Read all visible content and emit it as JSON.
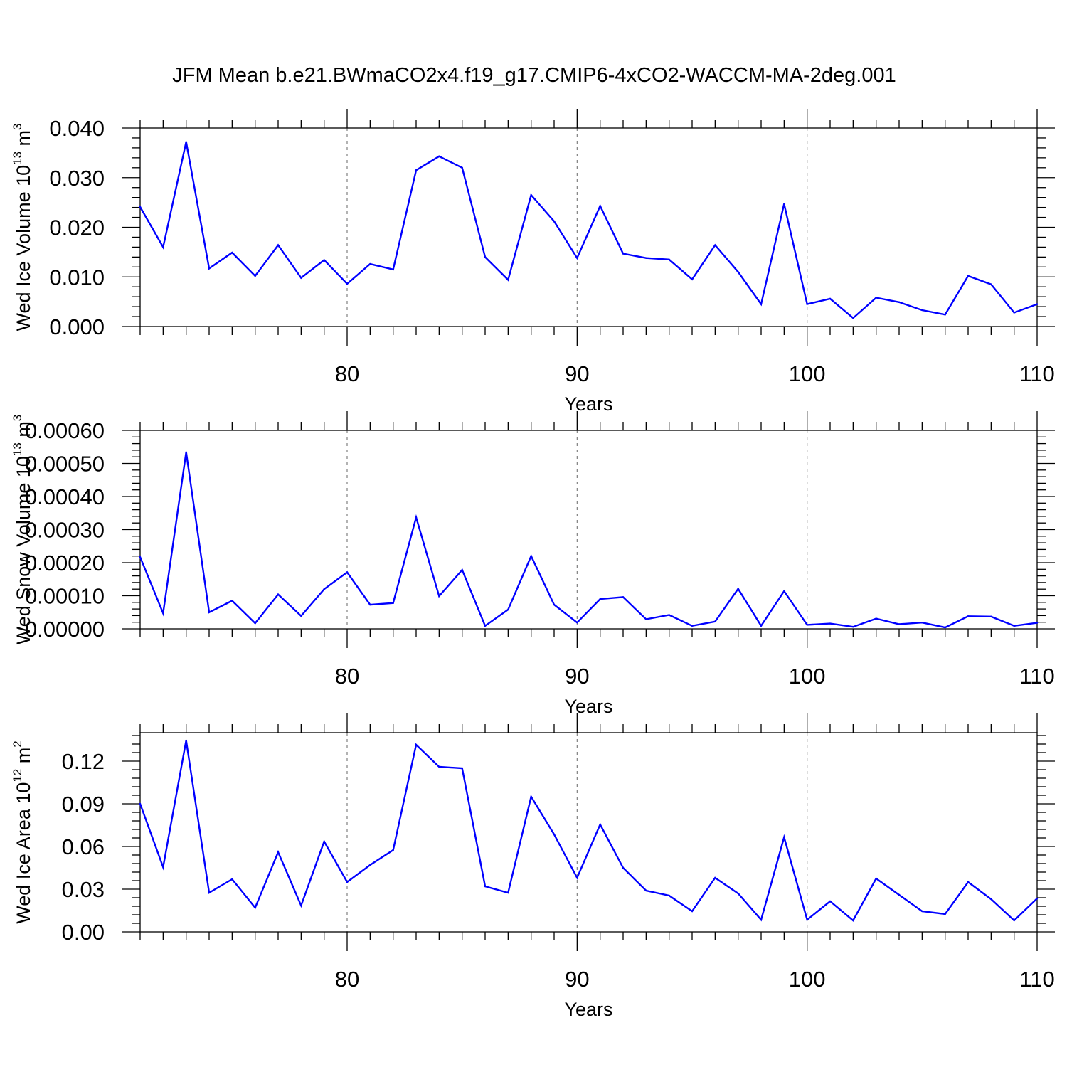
{
  "figure_title": "JFM Mean b.e21.BWmaCO2x4.f19_g17.CMIP6-4xCO2-WACCM-MA-2deg.001",
  "colors": {
    "line": "#0000ff",
    "axis": "#000000",
    "grid": "#808080"
  },
  "chart_data": [
    {
      "type": "line",
      "title": "JFM Mean b.e21.BWmaCO2x4.f19_g17.CMIP6-4xCO2-WACCM-MA-2deg.001",
      "xlabel": "Years",
      "ylabel": {
        "text": "Wed Ice Volume 10",
        "sup": "13",
        "unit": " m",
        "unit_sup": "3"
      },
      "xlim": [
        71,
        110
      ],
      "ylim": [
        0,
        0.04
      ],
      "x_ticks": [
        80,
        90,
        100,
        110
      ],
      "x_tick_labels": [
        "80",
        "90",
        "100",
        "110"
      ],
      "y_ticks": [
        0,
        0.01,
        0.02,
        0.03,
        0.04
      ],
      "y_tick_labels": [
        "0.000",
        "0.010",
        "0.020",
        "0.030",
        "0.040"
      ],
      "grid": "vertical dashed at major x ticks",
      "x": [
        71,
        72,
        73,
        74,
        75,
        76,
        77,
        78,
        79,
        80,
        81,
        82,
        83,
        84,
        85,
        86,
        87,
        88,
        89,
        90,
        91,
        92,
        93,
        94,
        95,
        96,
        97,
        98,
        99,
        100,
        101,
        102,
        103,
        104,
        105,
        106,
        107,
        108,
        109,
        110
      ],
      "series": [
        {
          "name": "Wed Ice Volume",
          "values": [
            0.0241,
            0.016,
            0.0372,
            0.0117,
            0.0149,
            0.0102,
            0.0164,
            0.0098,
            0.0134,
            0.0086,
            0.0126,
            0.0115,
            0.0315,
            0.0343,
            0.032,
            0.014,
            0.0094,
            0.0265,
            0.0212,
            0.0138,
            0.0243,
            0.0147,
            0.0138,
            0.0135,
            0.0095,
            0.0164,
            0.011,
            0.0045,
            0.0247,
            0.0045,
            0.0056,
            0.0017,
            0.0058,
            0.0049,
            0.0033,
            0.0024,
            0.0102,
            0.0085,
            0.0028,
            0.0045
          ]
        }
      ]
    },
    {
      "type": "line",
      "xlabel": "Years",
      "ylabel": {
        "text": "Wed Snow Volume 10",
        "sup": "13",
        "unit": " m",
        "unit_sup": "3"
      },
      "xlim": [
        71,
        110
      ],
      "ylim": [
        0,
        0.0006
      ],
      "x_ticks": [
        80,
        90,
        100,
        110
      ],
      "x_tick_labels": [
        "80",
        "90",
        "100",
        "110"
      ],
      "y_ticks": [
        0,
        0.0001,
        0.0002,
        0.0003,
        0.0004,
        0.0005,
        0.0006
      ],
      "y_tick_labels": [
        "0.00000",
        "0.00010",
        "0.00020",
        "0.00030",
        "0.00040",
        "0.00050",
        "0.00060"
      ],
      "grid": "vertical dashed at major x ticks",
      "x": [
        71,
        72,
        73,
        74,
        75,
        76,
        77,
        78,
        79,
        80,
        81,
        82,
        83,
        84,
        85,
        86,
        87,
        88,
        89,
        90,
        91,
        92,
        93,
        94,
        95,
        96,
        97,
        98,
        99,
        100,
        101,
        102,
        103,
        104,
        105,
        106,
        107,
        108,
        109,
        110
      ],
      "series": [
        {
          "name": "Wed Snow Volume",
          "values": [
            0.000217,
            4.7e-05,
            0.000534,
            5e-05,
            8.5e-05,
            1.7e-05,
            0.000104,
            3.9e-05,
            0.00012,
            0.000171,
            7.3e-05,
            7.8e-05,
            0.000337,
            9.9e-05,
            0.000178,
            9e-06,
            5.8e-05,
            0.00022,
            7.3e-05,
            1.9e-05,
            9e-05,
            9.6e-05,
            2.9e-05,
            4.2e-05,
            9e-06,
            2.2e-05,
            0.000121,
            9e-06,
            0.000114,
            1.2e-05,
            1.6e-05,
            6e-06,
            3.1e-05,
            1.4e-05,
            1.9e-05,
            4e-06,
            3.8e-05,
            3.7e-05,
            9e-06,
            1.8e-05
          ]
        }
      ]
    },
    {
      "type": "line",
      "xlabel": "Years",
      "ylabel": {
        "text": "Wed Ice Area 10",
        "sup": "12",
        "unit": " m",
        "unit_sup": "2"
      },
      "xlim": [
        71,
        110
      ],
      "ylim": [
        0,
        0.14
      ],
      "x_ticks": [
        80,
        90,
        100,
        110
      ],
      "x_tick_labels": [
        "80",
        "90",
        "100",
        "110"
      ],
      "y_ticks": [
        0,
        0.03,
        0.06,
        0.09,
        0.12
      ],
      "y_tick_labels": [
        "0.00",
        "0.03",
        "0.06",
        "0.09",
        "0.12"
      ],
      "grid": "vertical dashed at major x ticks",
      "x": [
        71,
        72,
        73,
        74,
        75,
        76,
        77,
        78,
        79,
        80,
        81,
        82,
        83,
        84,
        85,
        86,
        87,
        88,
        89,
        90,
        91,
        92,
        93,
        94,
        95,
        96,
        97,
        98,
        99,
        100,
        101,
        102,
        103,
        104,
        105,
        106,
        107,
        108,
        109,
        110
      ],
      "series": [
        {
          "name": "Wed Ice Area",
          "values": [
            0.09,
            0.0455,
            0.1345,
            0.0275,
            0.037,
            0.017,
            0.056,
            0.0185,
            0.0635,
            0.035,
            0.047,
            0.0575,
            0.1315,
            0.116,
            0.115,
            0.032,
            0.0275,
            0.095,
            0.0685,
            0.038,
            0.0755,
            0.045,
            0.029,
            0.0255,
            0.0145,
            0.038,
            0.027,
            0.0085,
            0.0665,
            0.0085,
            0.0215,
            0.008,
            0.0375,
            0.026,
            0.0145,
            0.0125,
            0.035,
            0.023,
            0.008,
            0.0235
          ]
        }
      ]
    }
  ]
}
